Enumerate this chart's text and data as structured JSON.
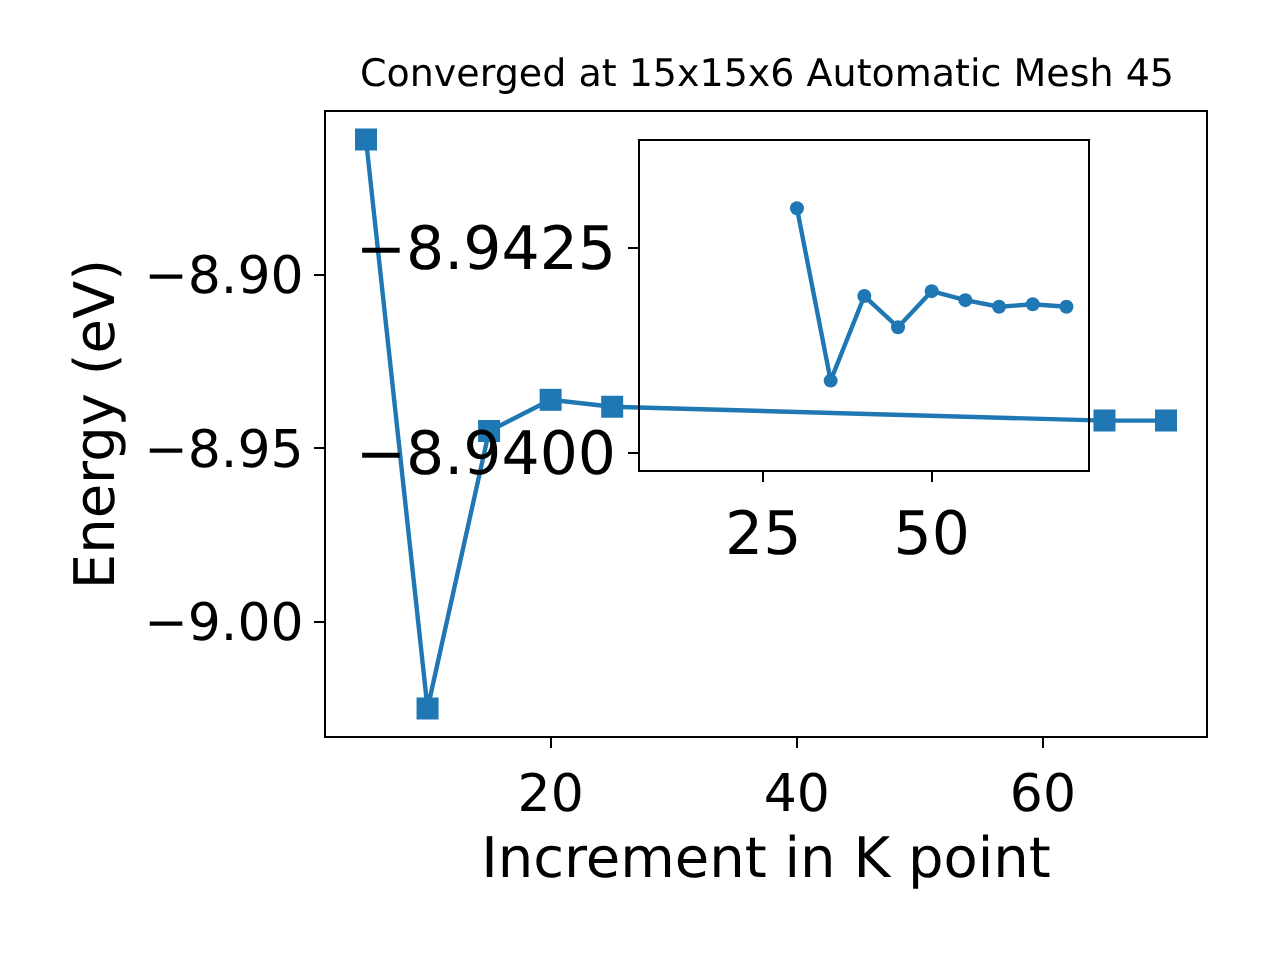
{
  "chart_data": [
    {
      "type": "line",
      "title": "Converged at 15x15x6 Automatic Mesh 45",
      "xlabel": "Increment in K point",
      "ylabel": "Energy (eV)",
      "x": [
        5,
        10,
        15,
        20,
        25,
        30,
        35,
        40,
        45,
        50,
        55,
        60,
        65,
        70
      ],
      "series": [
        {
          "color": "#1f77b4",
          "values": [
            -8.861,
            -9.025,
            -8.945,
            -8.936,
            -8.938,
            null,
            null,
            null,
            null,
            null,
            null,
            null,
            -8.942,
            -8.942
          ]
        }
      ],
      "xlim": [
        1.75,
        73.25
      ],
      "ylim": [
        -9.033,
        -8.853
      ],
      "xticks": [
        20,
        40,
        60
      ],
      "yticks": [
        {
          "value": -9.0,
          "label": "−9.00"
        },
        {
          "value": -8.95,
          "label": "−8.95"
        },
        {
          "value": -8.9,
          "label": "−8.90"
        }
      ],
      "grid": false,
      "marker": "square",
      "line_style": "solid"
    },
    {
      "type": "line",
      "x": [
        30,
        35,
        40,
        45,
        50,
        55,
        60,
        65,
        70
      ],
      "series": [
        {
          "color": "#1f77b4",
          "values": [
            -8.94298,
            -8.94088,
            -8.94191,
            -8.94153,
            -8.94197,
            -8.94186,
            -8.94178,
            -8.94181,
            -8.94178
          ]
        }
      ],
      "xlim": [
        6.7,
        73.2
      ],
      "ylim": [
        -8.93979,
        -8.9438
      ],
      "xticks": [
        25,
        50
      ],
      "yticks": [
        {
          "value": -8.94,
          "label": "−8.9400"
        },
        {
          "value": -8.9425,
          "label": "−8.9425"
        }
      ],
      "grid": false,
      "marker": "circle",
      "line_style": "solid"
    }
  ]
}
